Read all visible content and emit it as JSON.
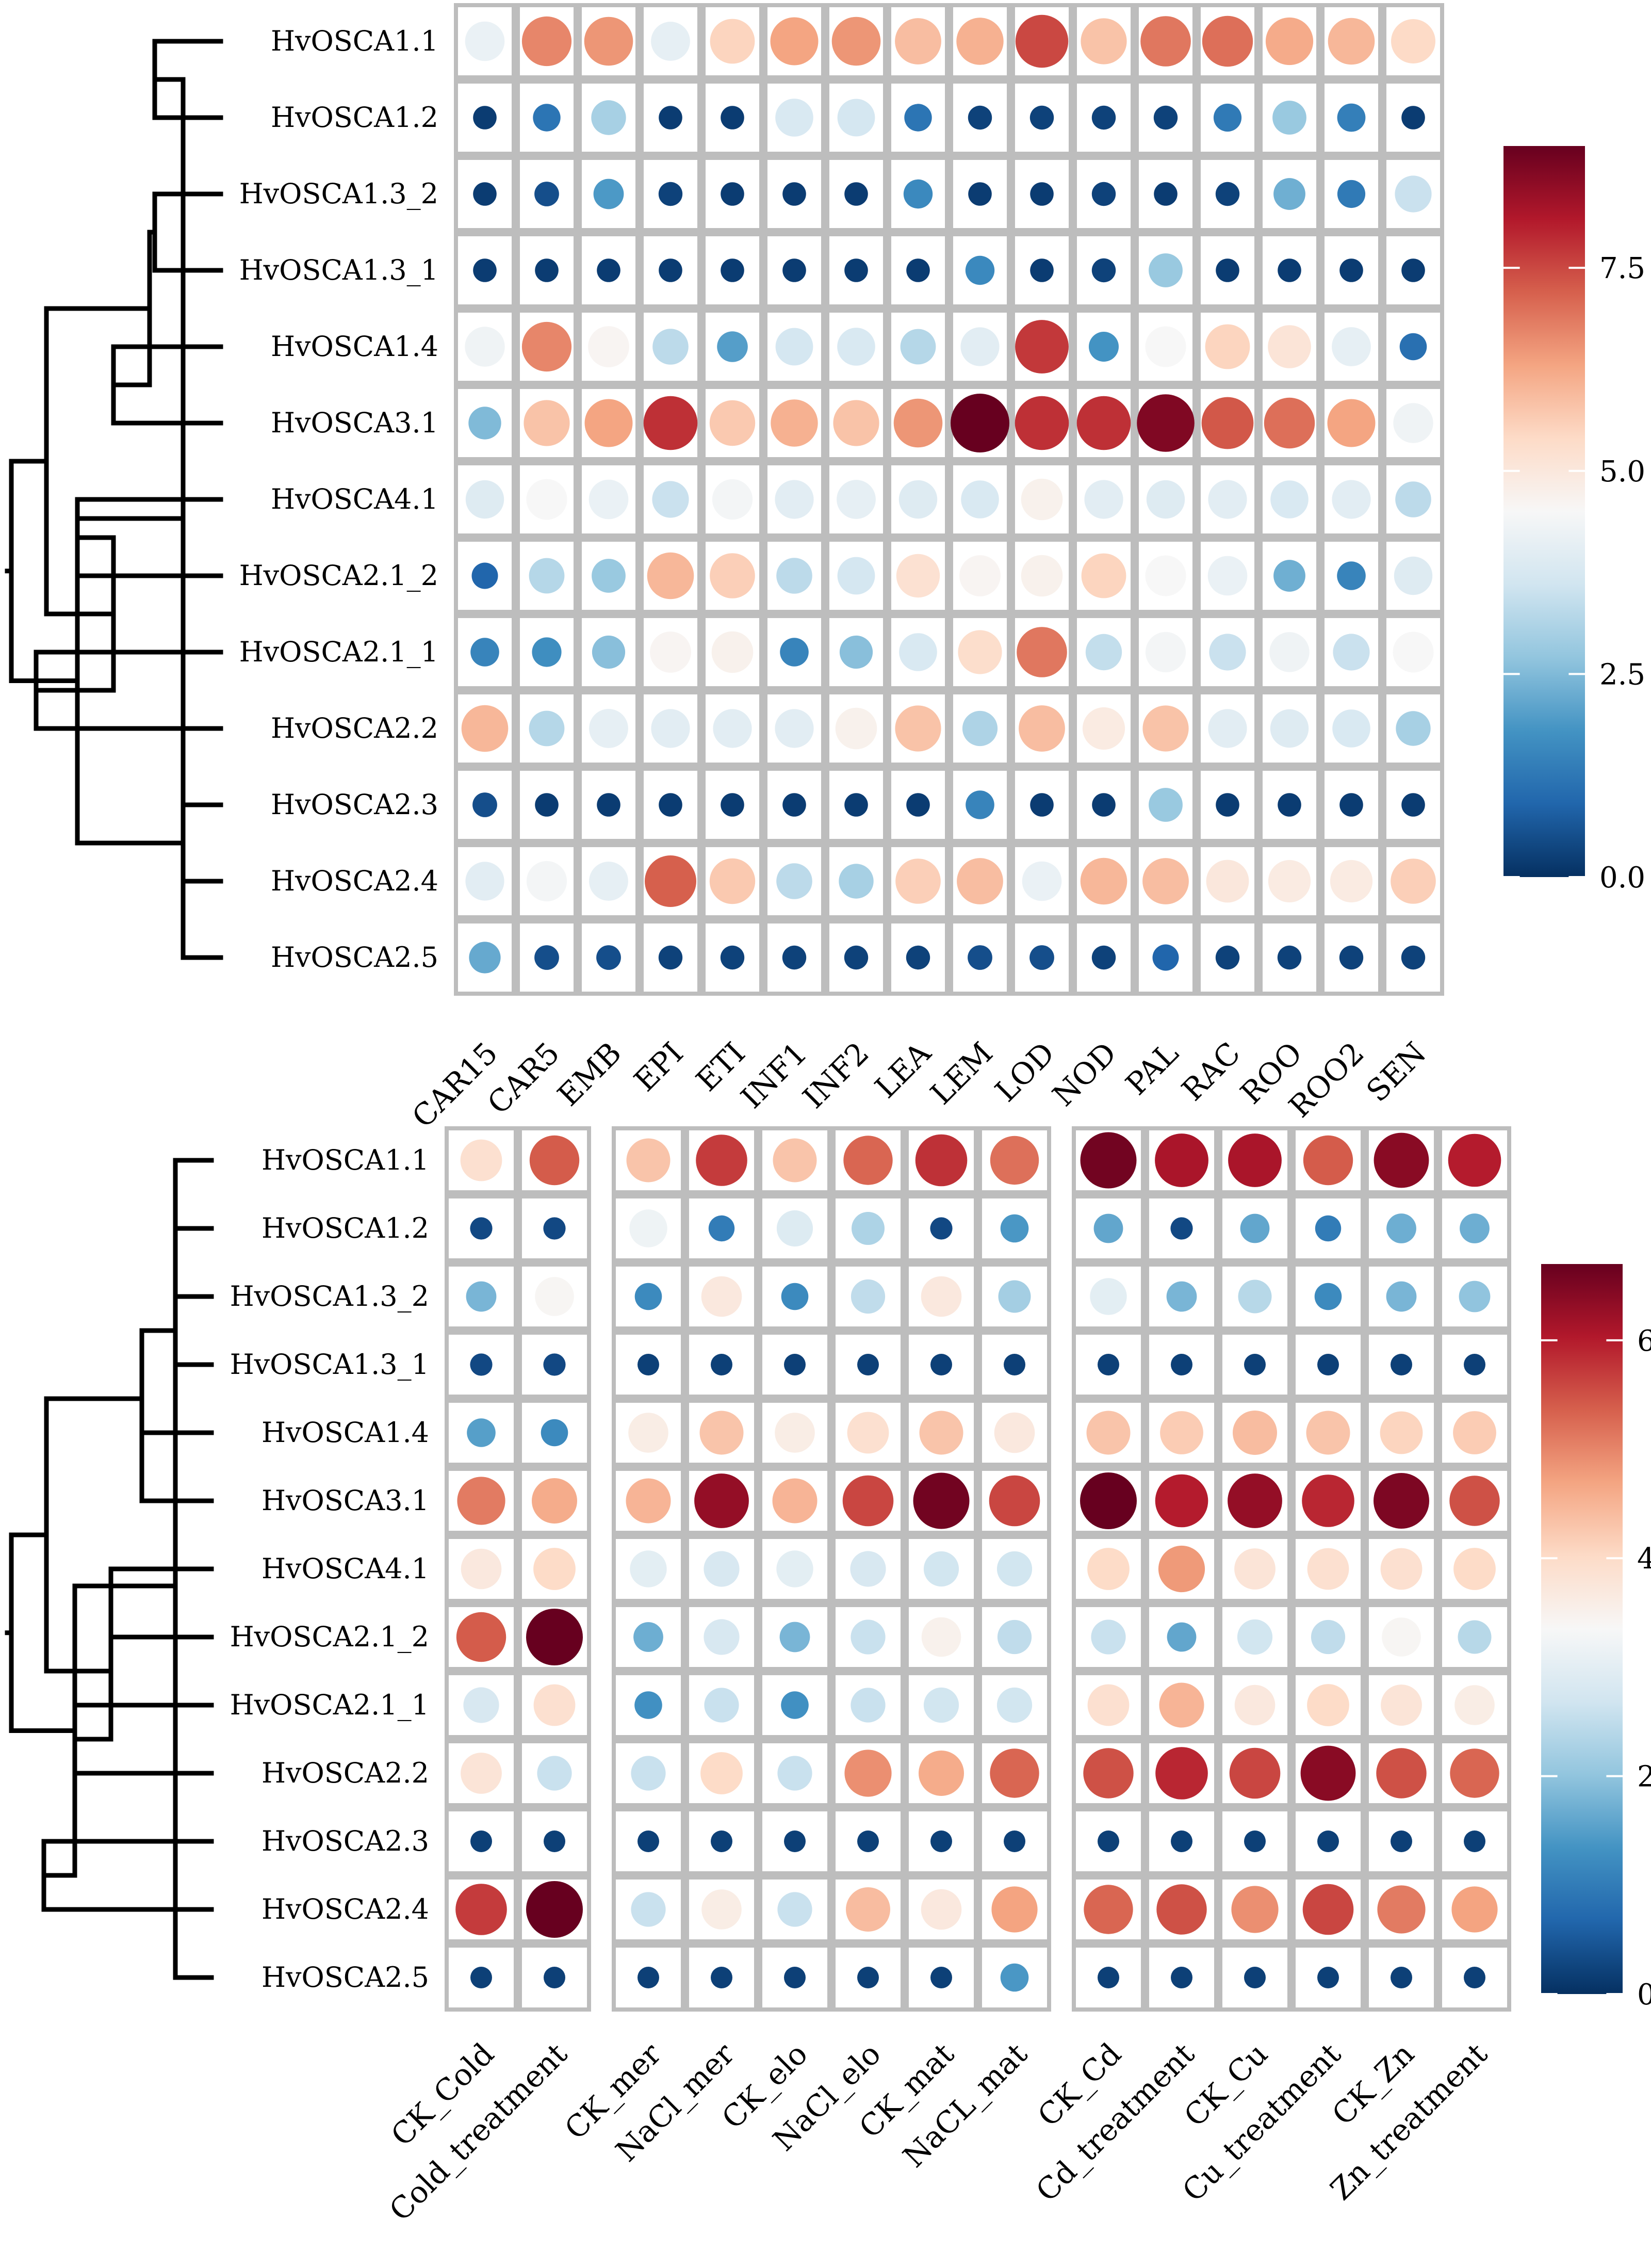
{
  "colors": {
    "scale": [
      "#053061",
      "#2166ac",
      "#4393c3",
      "#92c5de",
      "#d1e5f0",
      "#f7f7f7",
      "#fddbc7",
      "#f4a582",
      "#d6604d",
      "#b2182b",
      "#67001f"
    ],
    "frame": "#bdbdbd",
    "dendrogram": "#000000"
  },
  "genes": [
    "HvOSCA1.1",
    "HvOSCA1.2",
    "HvOSCA1.3_2",
    "HvOSCA1.3_1",
    "HvOSCA1.4",
    "HvOSCA3.1",
    "HvOSCA4.1",
    "HvOSCA2.1_2",
    "HvOSCA2.1_1",
    "HvOSCA2.2",
    "HvOSCA2.3",
    "HvOSCA2.4",
    "HvOSCA2.5"
  ],
  "chart_data": [
    {
      "type": "heatmap",
      "title": "",
      "rows": [
        "HvOSCA1.1",
        "HvOSCA1.2",
        "HvOSCA1.3_2",
        "HvOSCA1.3_1",
        "HvOSCA1.4",
        "HvOSCA3.1",
        "HvOSCA4.1",
        "HvOSCA2.1_2",
        "HvOSCA2.1_1",
        "HvOSCA2.2",
        "HvOSCA2.3",
        "HvOSCA2.4",
        "HvOSCA2.5"
      ],
      "columns": [
        "CAR15",
        "CAR5",
        "EMB",
        "EPI",
        "ETI",
        "INF1",
        "INF2",
        "LEA",
        "LEM",
        "LOD",
        "NOD",
        "PAL",
        "RAC",
        "ROO",
        "ROO2",
        "SEN"
      ],
      "column_groups": [
        16
      ],
      "colorbar": {
        "min": 0,
        "max": 9,
        "ticks": [
          0,
          2.5,
          5,
          7.5
        ],
        "tick_labels": [
          "0.0",
          "2.5",
          "5.0",
          "7.5"
        ]
      },
      "values": [
        [
          4.2,
          6.7,
          6.5,
          4.1,
          5.5,
          6.3,
          6.5,
          5.9,
          6.1,
          7.5,
          5.8,
          6.9,
          7.0,
          6.2,
          6.0,
          5.4
        ],
        [
          0.2,
          1.2,
          3.0,
          0.2,
          0.2,
          3.8,
          3.7,
          1.2,
          0.3,
          0.3,
          0.3,
          0.3,
          1.3,
          2.8,
          1.4,
          0.2
        ],
        [
          0.2,
          0.5,
          1.9,
          0.3,
          0.2,
          0.2,
          0.2,
          1.6,
          0.2,
          0.2,
          0.3,
          0.2,
          0.3,
          2.3,
          1.3,
          3.5
        ],
        [
          0.2,
          0.2,
          0.2,
          0.2,
          0.2,
          0.2,
          0.2,
          0.2,
          1.6,
          0.2,
          0.3,
          2.8,
          0.2,
          0.2,
          0.2,
          0.2
        ],
        [
          4.3,
          6.7,
          4.6,
          3.3,
          2.0,
          3.7,
          3.8,
          3.2,
          4.0,
          7.7,
          1.8,
          4.5,
          5.5,
          5.1,
          4.1,
          1.1
        ],
        [
          2.5,
          5.8,
          6.3,
          7.8,
          5.7,
          6.1,
          5.8,
          6.5,
          9.0,
          7.8,
          7.8,
          8.7,
          7.3,
          7.0,
          6.3,
          4.3
        ],
        [
          3.9,
          4.5,
          4.2,
          3.5,
          4.4,
          4.0,
          4.1,
          3.9,
          3.8,
          4.7,
          4.0,
          3.9,
          4.0,
          3.8,
          4.0,
          3.3
        ],
        [
          0.9,
          3.2,
          2.8,
          6.0,
          5.6,
          3.3,
          3.7,
          5.2,
          4.6,
          4.7,
          5.5,
          4.5,
          4.2,
          2.3,
          1.5,
          3.9
        ],
        [
          1.5,
          1.7,
          2.6,
          4.6,
          4.7,
          1.5,
          2.6,
          3.8,
          5.3,
          6.9,
          3.4,
          4.4,
          3.5,
          4.3,
          3.5,
          4.5
        ],
        [
          6.0,
          3.2,
          4.1,
          4.0,
          4.0,
          4.0,
          4.7,
          5.8,
          3.1,
          5.9,
          4.9,
          5.8,
          4.0,
          3.9,
          3.8,
          3.0
        ],
        [
          0.5,
          0.2,
          0.2,
          0.2,
          0.2,
          0.2,
          0.2,
          0.2,
          1.5,
          0.2,
          0.2,
          2.8,
          0.2,
          0.2,
          0.2,
          0.2
        ],
        [
          4.0,
          4.4,
          4.1,
          7.2,
          5.7,
          3.3,
          3.0,
          5.6,
          5.9,
          4.2,
          6.0,
          5.9,
          5.0,
          4.9,
          4.9,
          5.6
        ],
        [
          2.2,
          0.5,
          0.5,
          0.3,
          0.3,
          0.3,
          0.3,
          0.3,
          0.5,
          0.5,
          0.3,
          0.9,
          0.3,
          0.3,
          0.3,
          0.3
        ]
      ]
    },
    {
      "type": "heatmap",
      "title": "",
      "rows": [
        "HvOSCA1.1",
        "HvOSCA1.2",
        "HvOSCA1.3_2",
        "HvOSCA1.3_1",
        "HvOSCA1.4",
        "HvOSCA3.1",
        "HvOSCA4.1",
        "HvOSCA2.1_2",
        "HvOSCA2.1_1",
        "HvOSCA2.2",
        "HvOSCA2.3",
        "HvOSCA2.4",
        "HvOSCA2.5"
      ],
      "columns": [
        "CK_Cold",
        "Cold_treatment",
        "CK_mer",
        "NaCl_mer",
        "CK_elo",
        "NaCl_elo",
        "CK_mat",
        "NaCL_mat",
        "CK_Cd",
        "Cd_treatment",
        "CK_Cu",
        "Cu_treatment",
        "CK_Zn",
        "Zn_treatment"
      ],
      "column_groups": [
        2,
        6,
        6
      ],
      "colorbar": {
        "min": 0,
        "max": 6.7,
        "ticks": [
          0,
          2,
          4,
          6
        ],
        "tick_labels": [
          "0",
          "2",
          "4",
          "6"
        ]
      },
      "values": [
        [
          3.9,
          5.4,
          4.3,
          5.7,
          4.3,
          5.3,
          5.8,
          5.2,
          6.6,
          6.1,
          6.1,
          5.4,
          6.4,
          6.0
        ],
        [
          0.3,
          0.3,
          3.2,
          1.0,
          2.9,
          2.3,
          0.3,
          1.4,
          1.6,
          0.3,
          1.6,
          1.0,
          1.7,
          1.7
        ],
        [
          1.8,
          3.4,
          1.2,
          3.7,
          1.2,
          2.5,
          3.7,
          2.2,
          3.0,
          1.8,
          2.4,
          1.2,
          1.8,
          2.0
        ],
        [
          0.3,
          0.3,
          0.2,
          0.2,
          0.2,
          0.2,
          0.2,
          0.2,
          0.2,
          0.2,
          0.2,
          0.2,
          0.2,
          0.2
        ],
        [
          1.5,
          1.2,
          3.6,
          4.3,
          3.6,
          3.9,
          4.3,
          3.7,
          4.3,
          4.2,
          4.4,
          4.3,
          4.1,
          4.2
        ],
        [
          5.1,
          4.6,
          4.5,
          6.3,
          4.5,
          5.6,
          6.6,
          5.6,
          6.7,
          6.0,
          6.3,
          5.9,
          6.5,
          5.5
        ],
        [
          3.7,
          4.0,
          3.0,
          2.8,
          3.0,
          2.8,
          2.7,
          2.7,
          4.0,
          4.8,
          3.8,
          3.9,
          3.9,
          4.0
        ],
        [
          5.4,
          6.7,
          1.7,
          2.8,
          1.8,
          2.6,
          3.5,
          2.5,
          2.6,
          1.6,
          2.7,
          2.5,
          3.4,
          2.4
        ],
        [
          2.8,
          3.9,
          1.3,
          2.6,
          1.3,
          2.6,
          2.7,
          2.7,
          3.9,
          4.5,
          3.7,
          4.0,
          3.8,
          3.6
        ],
        [
          3.8,
          2.6,
          2.6,
          4.0,
          2.6,
          4.9,
          4.6,
          5.3,
          5.5,
          5.9,
          5.6,
          6.4,
          5.5,
          5.3
        ],
        [
          0.2,
          0.2,
          0.2,
          0.2,
          0.2,
          0.2,
          0.2,
          0.2,
          0.2,
          0.2,
          0.2,
          0.2,
          0.2,
          0.2
        ],
        [
          5.7,
          6.8,
          2.6,
          3.6,
          2.6,
          4.4,
          3.7,
          4.7,
          5.3,
          5.5,
          4.9,
          5.6,
          5.1,
          4.7
        ],
        [
          0.2,
          0.2,
          0.2,
          0.2,
          0.2,
          0.2,
          0.2,
          1.4,
          0.2,
          0.2,
          0.2,
          0.2,
          0.2,
          0.2
        ]
      ]
    }
  ]
}
